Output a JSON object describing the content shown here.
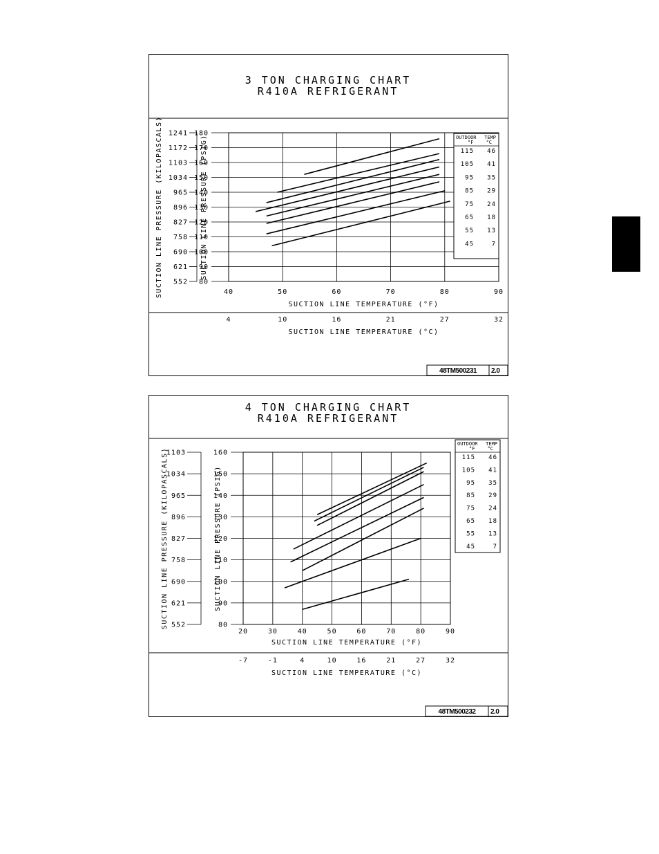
{
  "side_tab": {
    "color": "#000000"
  },
  "chart_data": [
    {
      "type": "line",
      "title": "3 TON CHARGING CHART",
      "subtitle": "R410A REFRIGERANT",
      "xlabel": "SUCTION LINE TEMPERATURE (°F)",
      "xlabel_secondary": "SUCTION LINE TEMPERATURE (°C)",
      "ylabel": "SUCTION LINE PRESSURE (PSIG)",
      "ylabel_secondary": "SUCTION LINE PRESSURE (KILOPASCALS)",
      "xlim": [
        40,
        90
      ],
      "ylim": [
        80,
        180
      ],
      "x_ticks": [
        40,
        50,
        60,
        70,
        80,
        90
      ],
      "y_ticks": [
        80,
        90,
        100,
        110,
        120,
        130,
        140,
        150,
        160,
        170,
        180
      ],
      "secondary_x_ticks": [
        {
          "value": 40,
          "label": "4"
        },
        {
          "value": 50,
          "label": "10"
        },
        {
          "value": 60,
          "label": "16"
        },
        {
          "value": 70,
          "label": "21"
        },
        {
          "value": 80,
          "label": "27"
        },
        {
          "value": 90,
          "label": "32"
        }
      ],
      "secondary_y_ticks": [
        "552",
        "621",
        "690",
        "758",
        "827",
        "896",
        "965",
        "1034",
        "1103",
        "1172",
        "1241"
      ],
      "grid": true,
      "legend": {
        "placement": "right",
        "header_left": "OUTDOOR\n°F",
        "header_right": "TEMP\n°C",
        "rows": [
          {
            "f": "115",
            "c": "46"
          },
          {
            "f": "105",
            "c": "41"
          },
          {
            "f": "95",
            "c": "35"
          },
          {
            "f": "85",
            "c": "29"
          },
          {
            "f": "75",
            "c": "24"
          },
          {
            "f": "65",
            "c": "18"
          },
          {
            "f": "55",
            "c": "13"
          },
          {
            "f": "45",
            "c": "7"
          }
        ]
      },
      "series": [
        {
          "x": [
            54,
            79
          ],
          "y": [
            152,
            176
          ]
        },
        {
          "x": [
            49,
            79
          ],
          "y": [
            140,
            166
          ]
        },
        {
          "x": [
            47,
            79
          ],
          "y": [
            133,
            162
          ]
        },
        {
          "x": [
            45,
            79
          ],
          "y": [
            127,
            157
          ]
        },
        {
          "x": [
            47,
            79
          ],
          "y": [
            124,
            152
          ]
        },
        {
          "x": [
            47,
            79
          ],
          "y": [
            119,
            147
          ]
        },
        {
          "x": [
            47,
            80
          ],
          "y": [
            112,
            141
          ]
        },
        {
          "x": [
            48,
            81
          ],
          "y": [
            104,
            134
          ]
        }
      ],
      "footer_code": "48TM500231",
      "footer_rev": "2.0"
    },
    {
      "type": "line",
      "title": "4 TON CHARGING CHART",
      "subtitle": "R410A REFRIGERANT",
      "xlabel": "SUCTION LINE TEMPERATURE (°F)",
      "xlabel_secondary": "SUCTION LINE TEMPERATURE (°C)",
      "ylabel": "SUCTION LINE PRESSURE (PSIG)",
      "ylabel_secondary": "SUCTION LINE PRESSURE (KILOPASCALS)",
      "xlim": [
        20,
        90
      ],
      "ylim": [
        80,
        160
      ],
      "x_ticks": [
        20,
        30,
        40,
        50,
        60,
        70,
        80,
        90
      ],
      "y_ticks": [
        80,
        90,
        100,
        110,
        120,
        130,
        140,
        150,
        160
      ],
      "secondary_x_ticks": [
        {
          "value": 20,
          "label": "-7"
        },
        {
          "value": 30,
          "label": "-1"
        },
        {
          "value": 40,
          "label": "4"
        },
        {
          "value": 50,
          "label": "10"
        },
        {
          "value": 60,
          "label": "16"
        },
        {
          "value": 70,
          "label": "21"
        },
        {
          "value": 80,
          "label": "27"
        },
        {
          "value": 90,
          "label": "32"
        }
      ],
      "secondary_y_ticks": [
        "552",
        "621",
        "690",
        "758",
        "827",
        "896",
        "965",
        "1034",
        "1103"
      ],
      "grid": true,
      "legend": {
        "placement": "right",
        "header_left": "OUTDOOR\n°F",
        "header_right": "TEMP\n°C",
        "rows": [
          {
            "f": "115",
            "c": "46"
          },
          {
            "f": "105",
            "c": "41"
          },
          {
            "f": "95",
            "c": "35"
          },
          {
            "f": "85",
            "c": "29"
          },
          {
            "f": "75",
            "c": "24"
          },
          {
            "f": "65",
            "c": "18"
          },
          {
            "f": "55",
            "c": "13"
          },
          {
            "f": "45",
            "c": "7"
          }
        ]
      },
      "series": [
        {
          "x": [
            45,
            82
          ],
          "y": [
            131,
            155
          ]
        },
        {
          "x": [
            44,
            81
          ],
          "y": [
            128,
            153
          ]
        },
        {
          "x": [
            45,
            81
          ],
          "y": [
            126,
            151
          ]
        },
        {
          "x": [
            37,
            81
          ],
          "y": [
            115,
            145
          ]
        },
        {
          "x": [
            36,
            81
          ],
          "y": [
            109,
            139
          ]
        },
        {
          "x": [
            40,
            81
          ],
          "y": [
            105,
            134
          ]
        },
        {
          "x": [
            34,
            80
          ],
          "y": [
            97,
            120
          ]
        },
        {
          "x": [
            40,
            76
          ],
          "y": [
            87,
            101
          ]
        }
      ],
      "footer_code": "48TM500232",
      "footer_rev": "2.0"
    }
  ]
}
